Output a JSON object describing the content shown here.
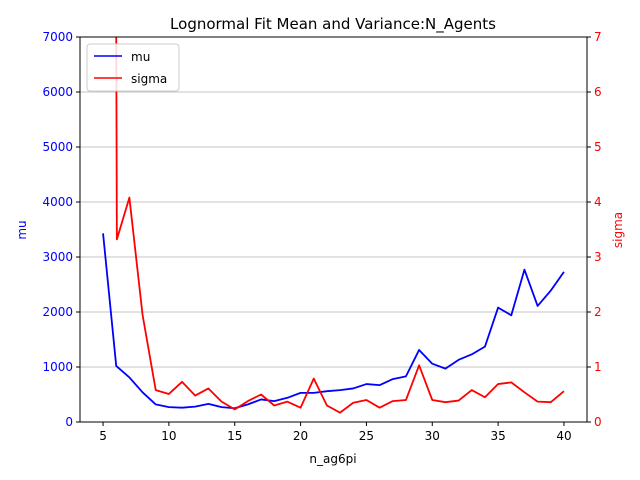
{
  "chart_data": {
    "type": "line",
    "title": "Lognormal Fit Mean and Variance:N_Agents",
    "xlabel": "n_ag6pi",
    "ylabel_left": "mu",
    "ylabel_right": "sigma",
    "xlim": [
      3.25,
      41.75
    ],
    "ylim_left": [
      0,
      7000
    ],
    "ylim_right": [
      0,
      7
    ],
    "x_ticks": [
      5,
      10,
      15,
      20,
      25,
      30,
      35,
      40
    ],
    "y_ticks_left": [
      0,
      1000,
      2000,
      3000,
      4000,
      5000,
      6000,
      7000
    ],
    "y_ticks_right": [
      0,
      1,
      2,
      3,
      4,
      5,
      6,
      7
    ],
    "grid": "horizontal lines at right-axis ticks",
    "legend_position": "upper-left",
    "x": [
      5,
      6,
      7,
      8,
      9,
      10,
      11,
      12,
      13,
      14,
      15,
      16,
      17,
      18,
      19,
      20,
      21,
      22,
      23,
      24,
      25,
      26,
      27,
      28,
      29,
      30,
      31,
      32,
      33,
      34,
      35,
      36,
      37,
      38,
      39,
      40
    ],
    "series": [
      {
        "name": "mu",
        "axis": "left",
        "color": "#0000ff",
        "values": [
          3430,
          1020,
          810,
          540,
          320,
          270,
          260,
          280,
          330,
          270,
          250,
          320,
          410,
          380,
          440,
          530,
          530,
          560,
          580,
          610,
          690,
          670,
          780,
          830,
          1310,
          1060,
          970,
          1130,
          1230,
          1370,
          2080,
          1940,
          2770,
          2110,
          2390,
          2730
        ]
      },
      {
        "name": "sigma",
        "axis": "right",
        "color": "#ff0000",
        "values": [
          null,
          7.2,
          4.08,
          1.95,
          0.58,
          0.51,
          0.73,
          0.48,
          0.61,
          0.37,
          0.23,
          0.38,
          0.5,
          0.3,
          0.37,
          0.26,
          0.79,
          0.3,
          0.17,
          0.35,
          0.4,
          0.26,
          0.38,
          0.4,
          1.03,
          0.4,
          0.36,
          0.39,
          0.58,
          0.45,
          0.69,
          0.72,
          0.54,
          0.37,
          0.36,
          0.56
        ],
        "start_x": 6
      }
    ],
    "sigma_curve": [
      [
        6,
        7.2
      ],
      [
        6.05,
        3.32
      ],
      [
        7,
        4.08
      ],
      [
        8,
        1.95
      ],
      [
        9,
        0.58
      ],
      [
        10,
        0.51
      ],
      [
        11,
        0.73
      ],
      [
        12,
        0.48
      ],
      [
        13,
        0.61
      ],
      [
        14,
        0.37
      ],
      [
        15,
        0.23
      ],
      [
        16,
        0.38
      ],
      [
        17,
        0.5
      ],
      [
        18,
        0.3
      ],
      [
        19,
        0.37
      ],
      [
        20,
        0.26
      ],
      [
        21,
        0.79
      ],
      [
        22,
        0.3
      ],
      [
        23,
        0.17
      ],
      [
        24,
        0.35
      ],
      [
        25,
        0.4
      ],
      [
        26,
        0.26
      ],
      [
        27,
        0.38
      ],
      [
        28,
        0.4
      ],
      [
        29,
        1.03
      ],
      [
        30,
        0.4
      ],
      [
        31,
        0.36
      ],
      [
        32,
        0.39
      ],
      [
        33,
        0.58
      ],
      [
        34,
        0.45
      ],
      [
        35,
        0.69
      ],
      [
        36,
        0.72
      ],
      [
        37,
        0.54
      ],
      [
        38,
        0.37
      ],
      [
        39,
        0.36
      ],
      [
        40,
        0.56
      ]
    ],
    "colors": {
      "left_axis": "#0000ff",
      "right_axis": "#ff0000",
      "grid": "#b0b0b0"
    }
  }
}
